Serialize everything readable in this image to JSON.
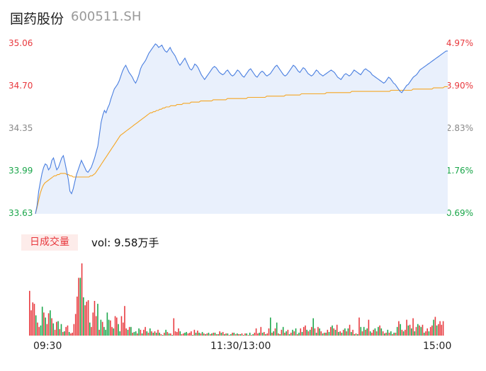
{
  "header": {
    "name": "国药股份",
    "code": "600511.SH"
  },
  "volume": {
    "tab_label": "日成交量",
    "readout": "vol: 9.58万手"
  },
  "colors": {
    "price_line": "#4a7fe0",
    "avg_line": "#f5a623",
    "up": "#e8383d",
    "down": "#1aa64a",
    "area_fill": "#e9f0fc"
  },
  "chart_data": {
    "type": "line",
    "price_axis": {
      "labels": [
        "35.06",
        "34.70",
        "34.35",
        "33.99",
        "33.63"
      ],
      "ylim": [
        33.63,
        35.06
      ]
    },
    "pct_axis": {
      "labels": [
        "4.97%",
        "3.90%",
        "2.83%",
        "1.76%",
        "0.69%"
      ]
    },
    "time_labels": [
      "09:30",
      "11:30/13:00",
      "15:00"
    ],
    "series": [
      {
        "values": [
          33.63,
          33.7,
          33.82,
          33.9,
          33.97,
          34.02,
          34.05,
          34.04,
          34.0,
          34.02,
          34.08,
          34.1,
          34.05,
          34.0,
          34.02,
          34.06,
          34.1,
          34.12,
          34.06,
          33.99,
          33.92,
          33.82,
          33.8,
          33.84,
          33.9,
          33.96,
          34.0,
          34.04,
          34.08,
          34.05,
          34.02,
          33.99,
          33.98,
          34.0,
          34.02,
          34.06,
          34.1,
          34.15,
          34.2,
          34.3,
          34.4,
          34.46,
          34.5,
          34.48,
          34.52,
          34.55,
          34.6,
          34.64,
          34.68,
          34.7,
          34.72,
          34.75,
          34.79,
          34.83,
          34.86,
          34.88,
          34.85,
          34.82,
          34.8,
          34.78,
          34.75,
          34.73,
          34.76,
          34.8,
          34.85,
          34.88,
          34.9,
          34.92,
          34.95,
          34.98,
          35.0,
          35.02,
          35.04,
          35.06,
          35.05,
          35.03,
          35.04,
          35.05,
          35.02,
          35.0,
          34.99,
          35.01,
          35.03,
          35.0,
          34.98,
          34.96,
          34.93,
          34.9,
          34.88,
          34.9,
          34.92,
          34.94,
          34.91,
          34.88,
          34.85,
          34.84,
          34.86,
          34.89,
          34.88,
          34.86,
          34.83,
          34.8,
          34.78,
          34.76,
          34.78,
          34.8,
          34.82,
          34.84,
          34.86,
          34.87,
          34.86,
          34.84,
          34.82,
          34.81,
          34.8,
          34.81,
          34.83,
          34.84,
          34.82,
          34.8,
          34.79,
          34.8,
          34.82,
          34.84,
          34.83,
          34.81,
          34.79,
          34.78,
          34.8,
          34.82,
          34.84,
          34.85,
          34.83,
          34.81,
          34.79,
          34.78,
          34.8,
          34.82,
          34.83,
          34.82,
          34.8,
          34.79,
          34.8,
          34.81,
          34.83,
          34.85,
          34.87,
          34.88,
          34.86,
          34.84,
          34.82,
          34.8,
          34.79,
          34.8,
          34.82,
          34.84,
          34.86,
          34.88,
          34.87,
          34.85,
          34.83,
          34.82,
          34.84,
          34.86,
          34.85,
          34.83,
          34.81,
          34.8,
          34.79,
          34.8,
          34.82,
          34.84,
          34.83,
          34.81,
          34.8,
          34.79,
          34.8,
          34.81,
          34.82,
          34.83,
          34.84,
          34.83,
          34.82,
          34.8,
          34.78,
          34.77,
          34.76,
          34.78,
          34.8,
          34.81,
          34.8,
          34.79,
          34.8,
          34.82,
          34.84,
          34.83,
          34.82,
          34.81,
          34.8,
          34.82,
          34.84,
          34.85,
          34.84,
          34.83,
          34.82,
          34.8,
          34.79,
          34.78,
          34.77,
          34.76,
          34.75,
          34.74,
          34.73,
          34.74,
          34.76,
          34.78,
          34.77,
          34.75,
          34.73,
          34.72,
          34.7,
          34.68,
          34.66,
          34.65,
          34.67,
          34.69,
          34.71,
          34.72,
          34.74,
          34.76,
          34.78,
          34.79,
          34.8,
          34.82,
          34.84,
          34.85,
          34.86,
          34.87,
          34.88,
          34.89,
          34.9,
          34.91,
          34.92,
          34.93,
          34.94,
          34.95,
          34.96,
          34.97,
          34.98,
          34.99,
          35.0,
          35.0
        ]
      },
      {
        "values": [
          33.63,
          33.68,
          33.74,
          33.8,
          33.84,
          33.87,
          33.89,
          33.9,
          33.91,
          33.92,
          33.93,
          33.94,
          33.95,
          33.95,
          33.96,
          33.96,
          33.97,
          33.97,
          33.97,
          33.97,
          33.96,
          33.96,
          33.95,
          33.95,
          33.94,
          33.94,
          33.94,
          33.94,
          33.94,
          33.94,
          33.94,
          33.94,
          33.94,
          33.94,
          33.94,
          33.95,
          33.95,
          33.96,
          33.97,
          33.99,
          34.01,
          34.03,
          34.05,
          34.07,
          34.09,
          34.11,
          34.13,
          34.15,
          34.17,
          34.19,
          34.21,
          34.23,
          34.25,
          34.27,
          34.29,
          34.3,
          34.31,
          34.32,
          34.33,
          34.34,
          34.35,
          34.36,
          34.37,
          34.38,
          34.39,
          34.4,
          34.41,
          34.42,
          34.43,
          34.44,
          34.45,
          34.46,
          34.47,
          34.48,
          34.48,
          34.49,
          34.49,
          34.5,
          34.5,
          34.51,
          34.51,
          34.52,
          34.52,
          34.53,
          34.53,
          34.53,
          34.54,
          34.54,
          34.54,
          34.54,
          34.55,
          34.55,
          34.55,
          34.55,
          34.56,
          34.56,
          34.56,
          34.56,
          34.56,
          34.57,
          34.57,
          34.57,
          34.57,
          34.57,
          34.57,
          34.58,
          34.58,
          34.58,
          34.58,
          34.58,
          34.58,
          34.58,
          34.58,
          34.59,
          34.59,
          34.59,
          34.59,
          34.59,
          34.59,
          34.59,
          34.59,
          34.59,
          34.6,
          34.6,
          34.6,
          34.6,
          34.6,
          34.6,
          34.6,
          34.6,
          34.6,
          34.6,
          34.6,
          34.6,
          34.6,
          34.61,
          34.61,
          34.61,
          34.61,
          34.61,
          34.61,
          34.61,
          34.61,
          34.61,
          34.61,
          34.61,
          34.61,
          34.62,
          34.62,
          34.62,
          34.62,
          34.62,
          34.62,
          34.62,
          34.62,
          34.62,
          34.62,
          34.62,
          34.62,
          34.63,
          34.63,
          34.63,
          34.63,
          34.63,
          34.63,
          34.63,
          34.63,
          34.63,
          34.63,
          34.64,
          34.64,
          34.64,
          34.64,
          34.64,
          34.64,
          34.64,
          34.64,
          34.64,
          34.64,
          34.64,
          34.64,
          34.64,
          34.64,
          34.64,
          34.64,
          34.65,
          34.65,
          34.65,
          34.65,
          34.65,
          34.65,
          34.65,
          34.65,
          34.65,
          34.65,
          34.65,
          34.65,
          34.65,
          34.65,
          34.65,
          34.65,
          34.66,
          34.66,
          34.66,
          34.66,
          34.66,
          34.66,
          34.66,
          34.66,
          34.66,
          34.66,
          34.66,
          34.66,
          34.66,
          34.66,
          34.66,
          34.66,
          34.66,
          34.66,
          34.66,
          34.66,
          34.66,
          34.66,
          34.66,
          34.66,
          34.66,
          34.67,
          34.67,
          34.67,
          34.67,
          34.67,
          34.67,
          34.67,
          34.67,
          34.67,
          34.67,
          34.67,
          34.67,
          34.67,
          34.67,
          34.68,
          34.68,
          34.68,
          34.68,
          34.68,
          34.68,
          34.68,
          34.68,
          34.68,
          34.68,
          34.68,
          34.68,
          34.68,
          34.69,
          34.69,
          34.69,
          34.69,
          34.69,
          34.69,
          34.69,
          34.7,
          34.7,
          34.7
        ]
      }
    ],
    "volume_bars": [
      62,
      35,
      46,
      44,
      28,
      18,
      12,
      14,
      40,
      32,
      25,
      16,
      31,
      35,
      24,
      17,
      8,
      19,
      20,
      9,
      16,
      5,
      6,
      12,
      14,
      5,
      3,
      4,
      16,
      30,
      54,
      80,
      80,
      100,
      53,
      42,
      47,
      49,
      18,
      12,
      32,
      48,
      27,
      44,
      8,
      22,
      19,
      12,
      8,
      32,
      22,
      21,
      12,
      10,
      27,
      25,
      16,
      6,
      27,
      18,
      41,
      10,
      8,
      12,
      12,
      4,
      5,
      6,
      3,
      10,
      8,
      3,
      8,
      12,
      6,
      4,
      10,
      6,
      4,
      6,
      4,
      8,
      4,
      2,
      1,
      4,
      8,
      5,
      3,
      3,
      1,
      24,
      6,
      5,
      10,
      6,
      2,
      3,
      4,
      5,
      3,
      4,
      6,
      1,
      8,
      4,
      7,
      4,
      3,
      5,
      3,
      2,
      3,
      4,
      2,
      3,
      4,
      4,
      2,
      2,
      6,
      4,
      5,
      2,
      3,
      3,
      1,
      2,
      4,
      4,
      2,
      3,
      2,
      2,
      3,
      1,
      3,
      3,
      1,
      4,
      1,
      2,
      4,
      10,
      3,
      4,
      12,
      4,
      5,
      2,
      3,
      10,
      25,
      4,
      6,
      10,
      18,
      3,
      2,
      8,
      12,
      4,
      6,
      8,
      2,
      4,
      8,
      6,
      10,
      2,
      4,
      10,
      5,
      12,
      14,
      8,
      6,
      8,
      12,
      24,
      10,
      4,
      12,
      10,
      6,
      3,
      4,
      4,
      8,
      5,
      12,
      14,
      10,
      8,
      15,
      5,
      6,
      4,
      8,
      10,
      6,
      10,
      15,
      5,
      8,
      2,
      3,
      2,
      25,
      12,
      6,
      12,
      8,
      10,
      22,
      6,
      4,
      8,
      10,
      6,
      12,
      14,
      10,
      6,
      3,
      4,
      8,
      4,
      6,
      2,
      4,
      4,
      12,
      20,
      16,
      8,
      6,
      8,
      22,
      14,
      15,
      10,
      24,
      6,
      12,
      16,
      14,
      12,
      15,
      4,
      6,
      10,
      6,
      12,
      14,
      22,
      26,
      14,
      16,
      20,
      15,
      20
    ],
    "volume_colors": [
      "u",
      "u",
      "u",
      "u",
      "d",
      "u",
      "u",
      "d",
      "d",
      "u",
      "d",
      "u",
      "u",
      "d",
      "u",
      "d",
      "u",
      "u",
      "d",
      "u",
      "d",
      "u",
      "d",
      "u",
      "u",
      "d",
      "u",
      "u",
      "u",
      "u",
      "u",
      "u",
      "d",
      "u",
      "d",
      "u",
      "u",
      "u",
      "d",
      "u",
      "u",
      "u",
      "u",
      "d",
      "u",
      "d",
      "u",
      "d",
      "d",
      "d",
      "d",
      "u",
      "u",
      "d",
      "u",
      "u",
      "d",
      "d",
      "u",
      "u",
      "u",
      "u",
      "d",
      "u",
      "d",
      "u",
      "d",
      "d",
      "u",
      "d",
      "u",
      "d",
      "u",
      "u",
      "d",
      "u",
      "d",
      "u",
      "d",
      "u",
      "d",
      "u",
      "d",
      "u",
      "d",
      "u",
      "d",
      "u",
      "d",
      "u",
      "d",
      "u",
      "u",
      "u",
      "u",
      "d",
      "u",
      "u",
      "d",
      "d",
      "u",
      "u",
      "u",
      "d",
      "u",
      "d",
      "u",
      "d",
      "u",
      "d",
      "u",
      "d",
      "u",
      "d",
      "u",
      "d",
      "u",
      "d",
      "u",
      "d",
      "u",
      "d",
      "u",
      "d",
      "u",
      "d",
      "u",
      "d",
      "u",
      "d",
      "u",
      "d",
      "u",
      "d",
      "u",
      "d",
      "u",
      "d",
      "u",
      "d",
      "u",
      "d",
      "u",
      "u",
      "u",
      "d",
      "u",
      "d",
      "u",
      "d",
      "u",
      "u",
      "d",
      "u",
      "d",
      "u",
      "d",
      "u",
      "d",
      "u",
      "d",
      "u",
      "d",
      "u",
      "d",
      "u",
      "d",
      "u",
      "d",
      "u",
      "d",
      "u",
      "d",
      "u",
      "u",
      "d",
      "u",
      "d",
      "u",
      "d",
      "u",
      "d",
      "u",
      "d",
      "u",
      "d",
      "u",
      "d",
      "u",
      "d",
      "u",
      "d",
      "u",
      "d",
      "u",
      "d",
      "u",
      "d",
      "u",
      "d",
      "u",
      "d",
      "u",
      "d",
      "u",
      "d",
      "u",
      "d",
      "u",
      "d",
      "u",
      "d",
      "u",
      "d",
      "u",
      "d",
      "u",
      "u",
      "d",
      "u",
      "d",
      "u",
      "d",
      "u",
      "d",
      "u",
      "d",
      "u",
      "d",
      "u",
      "d",
      "u",
      "d",
      "u",
      "d",
      "u",
      "d",
      "u",
      "u",
      "d",
      "u",
      "d",
      "u",
      "d",
      "u",
      "d",
      "u",
      "d",
      "u",
      "d",
      "u",
      "u",
      "d",
      "u",
      "u",
      "d",
      "u",
      "d",
      "u",
      "u",
      "u",
      "u",
      "u",
      "u"
    ]
  }
}
